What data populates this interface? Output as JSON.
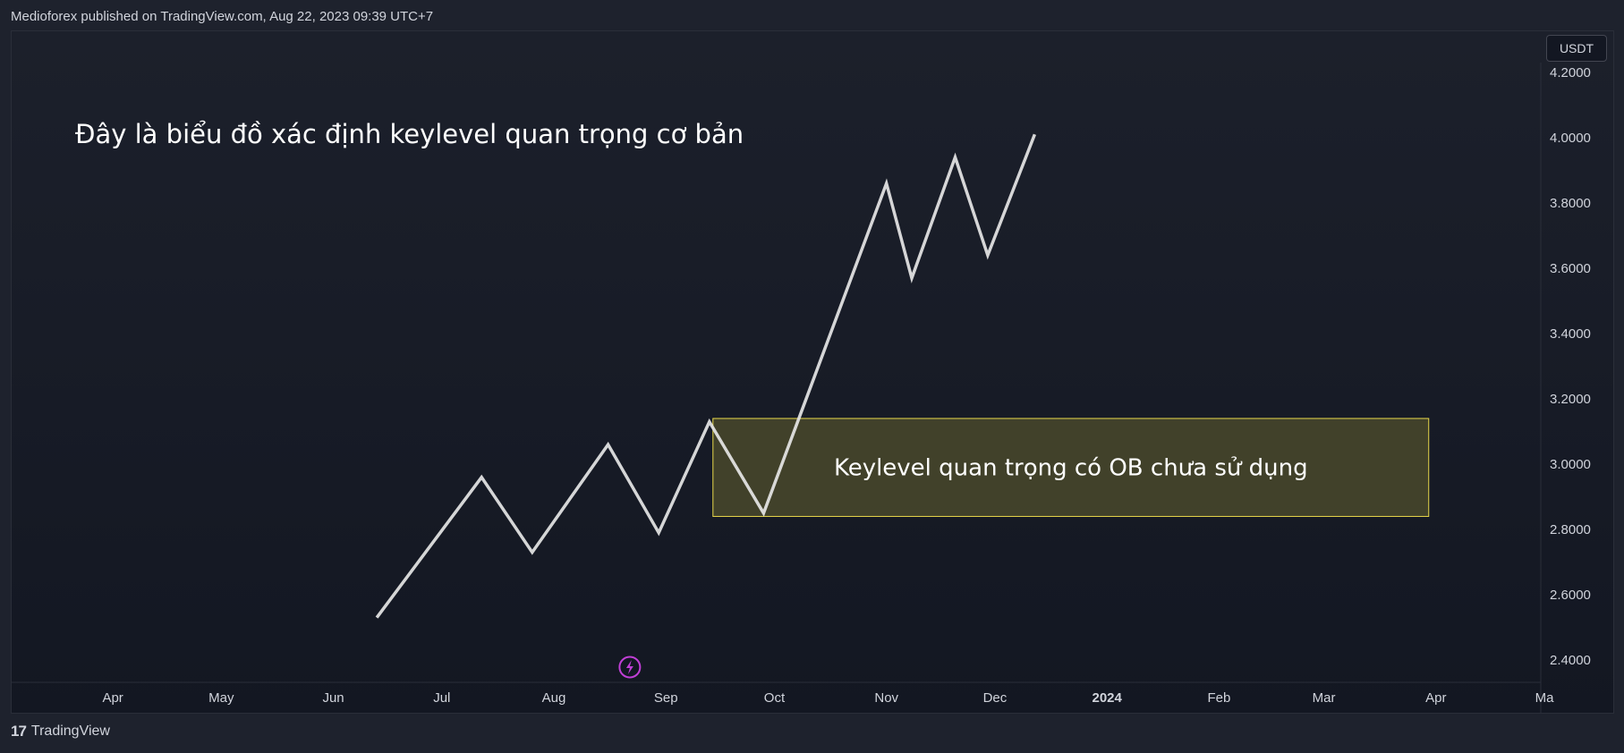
{
  "header": {
    "published_text": "Medioforex published on TradingView.com, Aug 22, 2023 09:39 UTC+7"
  },
  "currency_button": {
    "label": "USDT"
  },
  "footer": {
    "logo_glyph": "17",
    "brand": "TradingView"
  },
  "colors": {
    "line": "#e6e6e6",
    "box_fill": "#4a4a2c",
    "box_border": "#e8d84a",
    "axis_text": "#d1d4dc",
    "event_icon": "#c13fd6"
  },
  "chart_data": {
    "type": "line",
    "title": "Đây là biểu đồ xác định keylevel quan trọng cơ bản",
    "xlabel": "",
    "ylabel": "",
    "ylim": [
      2.34,
      4.23
    ],
    "xlim": [
      "2023-03-04",
      "2024-04-30"
    ],
    "x_ticks": [
      {
        "label": "Apr",
        "x": "2023-04-01"
      },
      {
        "label": "May",
        "x": "2023-05-01"
      },
      {
        "label": "Jun",
        "x": "2023-06-01"
      },
      {
        "label": "Jul",
        "x": "2023-07-01"
      },
      {
        "label": "Aug",
        "x": "2023-08-01"
      },
      {
        "label": "Sep",
        "x": "2023-09-01"
      },
      {
        "label": "Oct",
        "x": "2023-10-01"
      },
      {
        "label": "Nov",
        "x": "2023-11-01"
      },
      {
        "label": "Dec",
        "x": "2023-12-01"
      },
      {
        "label": "2024",
        "x": "2024-01-01",
        "bold": true
      },
      {
        "label": "Feb",
        "x": "2024-02-01"
      },
      {
        "label": "Mar",
        "x": "2024-03-01"
      },
      {
        "label": "Apr",
        "x": "2024-04-01"
      },
      {
        "label": "Ma",
        "x": "2024-05-01"
      }
    ],
    "y_ticks": [
      "4.2000",
      "4.0000",
      "3.8000",
      "3.6000",
      "3.4000",
      "3.2000",
      "3.0000",
      "2.8000",
      "2.6000",
      "2.4000"
    ],
    "series": [
      {
        "x": [
          "2023-06-13",
          "2023-07-12",
          "2023-07-26",
          "2023-08-16",
          "2023-08-30",
          "2023-09-13",
          "2023-09-28",
          "2023-11-01",
          "2023-11-08",
          "2023-11-20",
          "2023-11-29",
          "2023-12-12"
        ],
        "y": [
          2.53,
          2.96,
          2.73,
          3.06,
          2.79,
          3.13,
          2.85,
          3.86,
          3.57,
          3.94,
          3.64,
          4.01
        ]
      }
    ],
    "annotations": [
      {
        "type": "rectangle",
        "text": "Keylevel quan trọng có OB chưa sử dụng",
        "x_range": [
          "2023-09-14",
          "2024-03-30"
        ],
        "y_range": [
          2.84,
          3.14
        ]
      }
    ],
    "event_marker": {
      "x": "2023-08-22",
      "icon": "lightning-icon"
    }
  }
}
